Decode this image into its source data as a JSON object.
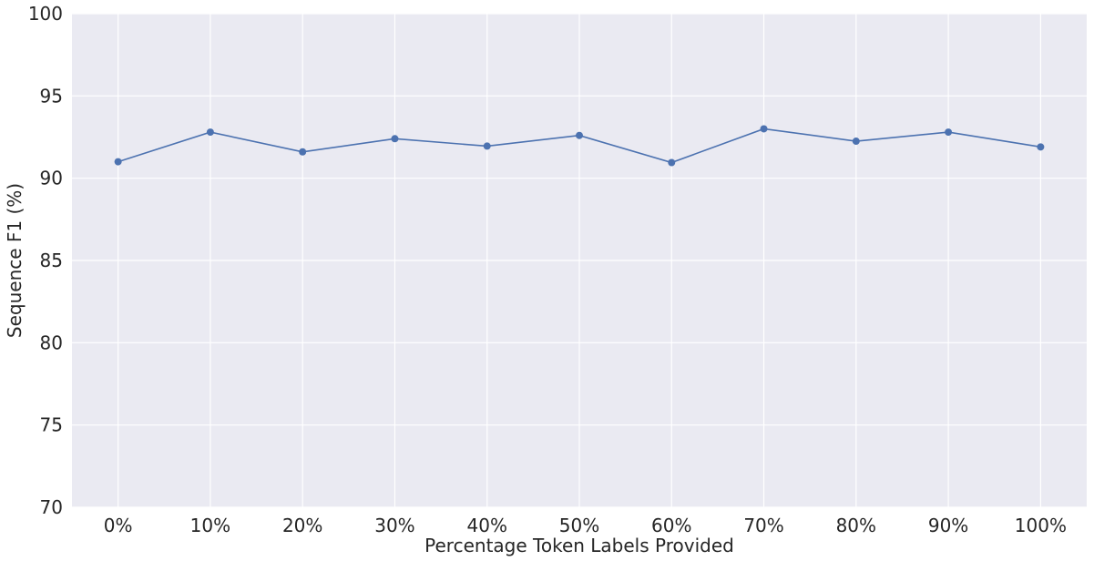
{
  "chart_data": {
    "type": "line",
    "title": "",
    "xlabel": "Percentage Token Labels Provided",
    "ylabel": "Sequence F1 (%)",
    "categories": [
      "0%",
      "10%",
      "20%",
      "30%",
      "40%",
      "50%",
      "60%",
      "70%",
      "80%",
      "90%",
      "100%"
    ],
    "ylim": [
      70,
      100
    ],
    "yticks": [
      70,
      75,
      80,
      85,
      90,
      95,
      100
    ],
    "grid": true,
    "legend": "none",
    "colors": {
      "background": "#eaeaf2",
      "grid": "#ffffff",
      "line": "#4c72b0"
    },
    "series": [
      {
        "values": [
          91.0,
          92.8,
          91.6,
          92.4,
          91.95,
          92.6,
          90.95,
          93.0,
          92.25,
          92.8,
          91.9
        ]
      }
    ]
  }
}
